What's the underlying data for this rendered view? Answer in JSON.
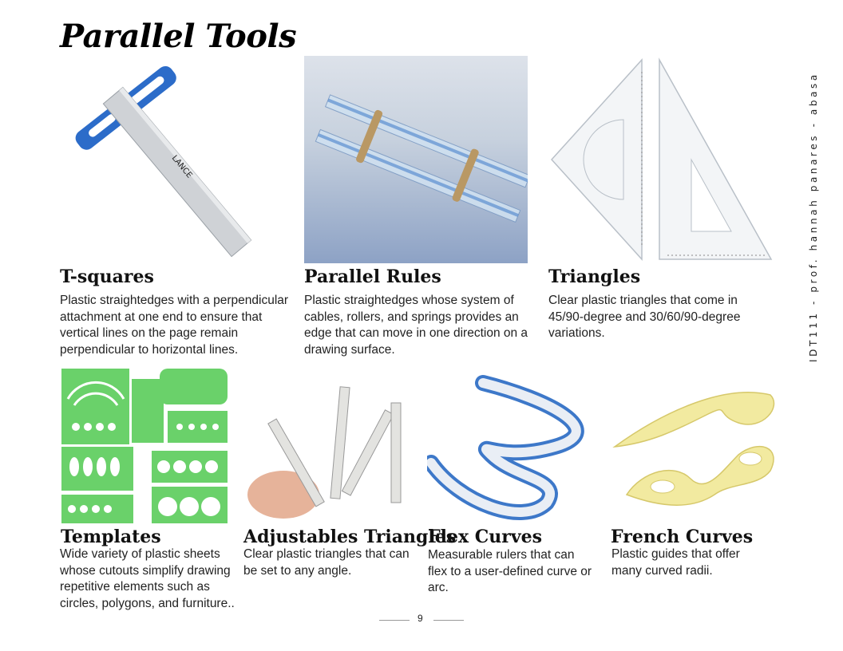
{
  "page": {
    "title": "Parallel Tools",
    "side_note": "IDT111 - prof. hannah panares - abasa",
    "page_number": "9"
  },
  "items": [
    {
      "heading": "T-squares",
      "text": "Plastic straightedges with a perpendicular attachment at one end to ensure that vertical lines on the page remain perpendicular to horizontal lines.",
      "brand": "LANCE"
    },
    {
      "heading": "Parallel Rules",
      "text": "Plastic straightedges whose system of cables, rollers, and springs provides an edge that can move in one direction on a drawing surface."
    },
    {
      "heading": "Triangles",
      "text": "Clear plastic triangles that come in 45/90-degree and 30/60/90-degree variations."
    },
    {
      "heading": "Templates",
      "text": "Wide variety of plastic sheets whose cutouts simplify drawing repetitive elements such as circles, polygons, and furniture.."
    },
    {
      "heading": "Adjustables Triangles",
      "text": "Clear plastic triangles that can be set to any angle."
    },
    {
      "heading": "Flex Curves",
      "text": "Measurable rulers that can flex to a user-defined curve or arc."
    },
    {
      "heading": "French Curves",
      "text": "Plastic guides that offer many curved radii."
    }
  ]
}
